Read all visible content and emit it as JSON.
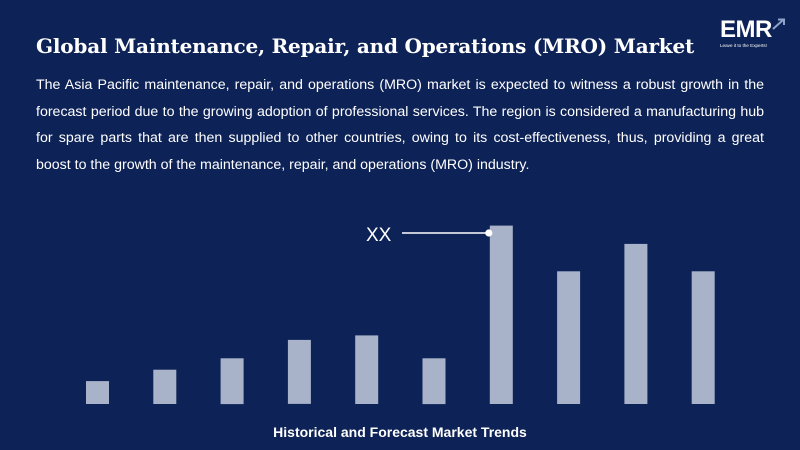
{
  "title": "Global Maintenance, Repair, and Operations (MRO) Market",
  "description": "The Asia Pacific maintenance, repair, and operations (MRO) market is expected to witness a robust growth in the forecast period due to the growing adoption of professional services. The region is considered a manufacturing hub for spare parts that are then supplied to other countries, owing to its cost-effectiveness, thus, providing a great boost to the growth of the maintenance, repair, and operations (MRO) industry.",
  "logo": {
    "text": "EMR",
    "tagline": "Leave it to the Experts!",
    "icon": "arrow-up-right-icon"
  },
  "colors": {
    "background": "#0d2256",
    "bar": "#a8b3c9",
    "text": "#ffffff"
  },
  "chart_data": {
    "type": "bar",
    "xlabel": "Historical and Forecast Market Trends",
    "ylabel": "",
    "values": [
      1.0,
      1.5,
      2.0,
      2.8,
      3.0,
      2.0,
      7.8,
      5.8,
      7.0,
      5.8
    ],
    "ylim": [
      0,
      8
    ],
    "grid": false,
    "annotation": {
      "text": "XX",
      "bar_index": 6
    }
  }
}
